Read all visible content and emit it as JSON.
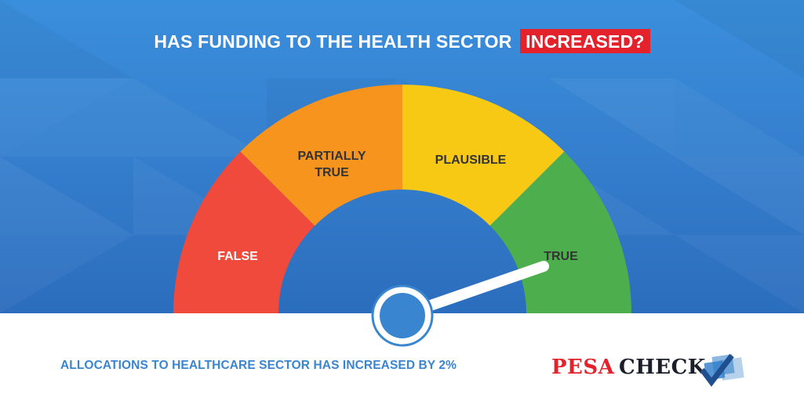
{
  "headline": {
    "text": "HAS FUNDING TO THE HEALTH SECTOR",
    "highlight": "INCREASED?"
  },
  "meter": {
    "segments": [
      {
        "label_line1": "FALSE",
        "label_line2": "",
        "color": "#ef4a3b"
      },
      {
        "label_line1": "PARTIALLY",
        "label_line2": "TRUE",
        "color": "#f7941d"
      },
      {
        "label_line1": "PLAUSIBLE",
        "label_line2": "",
        "color": "#f8c914"
      },
      {
        "label_line1": "TRUE",
        "label_line2": "",
        "color": "#4cae4c"
      }
    ],
    "selected": "TRUE",
    "needle_color": "#ffffff",
    "hub_color": "#3a85d0"
  },
  "footer": {
    "statement": "ALLOCATIONS TO HEALTHCARE SECTOR HAS INCREASED BY 2%"
  },
  "logo": {
    "part1": "PESA",
    "part2": "CHECK",
    "icon": "checkmark-squares-icon"
  },
  "colors": {
    "background": "#3a8fdc",
    "highlight": "#e3222c",
    "footer_text": "#3a85d0"
  }
}
